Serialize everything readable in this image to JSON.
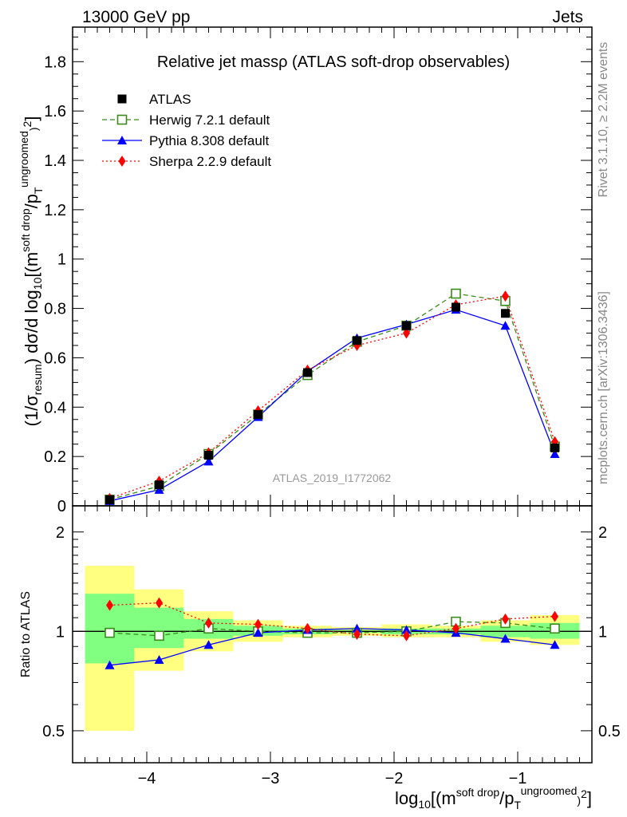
{
  "header": {
    "energy": "13000 GeV pp",
    "process": "Jets",
    "side_top": "Rivet 3.1.10, ≥ 2.2M events",
    "side_bottom": "mcplots.cern.ch [arXiv:1306.3436]",
    "analysis_id": "ATLAS_2019_I1772062"
  },
  "chart_data": [
    {
      "type": "line",
      "panel": "main",
      "title": "Relative jet massρ (ATLAS soft-drop observables)",
      "ylabel": "(1/σresum) dσ/d log10[(msoft drop/pTungroomed)2]",
      "xlim": [
        -4.6,
        -0.4
      ],
      "ylim": [
        0,
        1.94
      ],
      "yticks": [
        0,
        0.2,
        0.4,
        0.6,
        0.8,
        1,
        1.2,
        1.4,
        1.6,
        1.8
      ],
      "ytick_labels": [
        "0",
        "0.2",
        "0.4",
        "0.6",
        "0.8",
        "1",
        "1.2",
        "1.4",
        "1.6",
        "1.8"
      ],
      "x": [
        -4.3,
        -3.9,
        -3.5,
        -3.1,
        -2.7,
        -2.3,
        -1.9,
        -1.5,
        -1.1,
        -0.7
      ],
      "legend_position": "top-left",
      "series": [
        {
          "name": "ATLAS",
          "color": "#000000",
          "marker": "square",
          "values": [
            0.025,
            0.085,
            0.205,
            0.37,
            0.54,
            0.67,
            0.73,
            0.805,
            0.78,
            0.235
          ]
        },
        {
          "name": "Herwig 7.2.1 default",
          "color": "#3a8a1a",
          "marker": "open-square",
          "dash": "dashed",
          "values": [
            0.025,
            0.08,
            0.21,
            0.37,
            0.53,
            0.665,
            0.73,
            0.86,
            0.83,
            0.24
          ]
        },
        {
          "name": "Pythia 8.308 default",
          "color": "#0000ff",
          "marker": "triangle",
          "dash": "solid",
          "values": [
            0.02,
            0.065,
            0.18,
            0.36,
            0.545,
            0.68,
            0.735,
            0.795,
            0.73,
            0.21
          ]
        },
        {
          "name": "Sherpa 2.2.9 default",
          "color": "#ff0000",
          "marker": "diamond",
          "dash": "dotted",
          "values": [
            0.03,
            0.1,
            0.215,
            0.385,
            0.55,
            0.65,
            0.7,
            0.815,
            0.85,
            0.26
          ]
        }
      ]
    },
    {
      "type": "line",
      "panel": "ratio",
      "ylabel": "Ratio to ATLAS",
      "xlabel": "log10[(msoft drop/pTungroomed)2]",
      "xlim": [
        -4.6,
        -0.4
      ],
      "ylim": [
        0.4,
        2.4
      ],
      "log_y": true,
      "yticks": [
        0.5,
        1,
        2
      ],
      "ytick_labels": [
        "0.5",
        "1",
        "2"
      ],
      "xticks": [
        -4,
        -3,
        -2,
        -1
      ],
      "xtick_labels": [
        "−4",
        "−3",
        "−2",
        "−1"
      ],
      "bin_edges": [
        -4.5,
        -4.1,
        -3.7,
        -3.3,
        -2.9,
        -2.5,
        -2.1,
        -1.7,
        -1.3,
        -0.9,
        -0.5
      ],
      "band_total": [
        [
          0.5,
          1.58
        ],
        [
          0.76,
          1.34
        ],
        [
          0.87,
          1.15
        ],
        [
          0.93,
          1.08
        ],
        [
          0.96,
          1.04
        ],
        [
          0.97,
          1.03
        ],
        [
          0.96,
          1.05
        ],
        [
          0.96,
          1.04
        ],
        [
          0.93,
          1.08
        ],
        [
          0.91,
          1.12
        ]
      ],
      "band_stat": [
        [
          0.8,
          1.3
        ],
        [
          0.89,
          1.18
        ],
        [
          0.95,
          1.09
        ],
        [
          0.97,
          1.04
        ],
        [
          0.98,
          1.02
        ],
        [
          0.99,
          1.01
        ],
        [
          0.98,
          1.02
        ],
        [
          0.98,
          1.02
        ],
        [
          0.96,
          1.04
        ],
        [
          0.95,
          1.06
        ]
      ],
      "x": [
        -4.3,
        -3.9,
        -3.5,
        -3.1,
        -2.7,
        -2.3,
        -1.9,
        -1.5,
        -1.1,
        -0.7
      ],
      "series": [
        {
          "name": "Herwig 7.2.1 default",
          "color": "#3a8a1a",
          "marker": "open-square",
          "dash": "dashed",
          "values": [
            0.99,
            0.97,
            1.02,
            1.0,
            0.99,
            0.99,
            1.0,
            1.07,
            1.06,
            1.02
          ]
        },
        {
          "name": "Pythia 8.308 default",
          "color": "#0000ff",
          "marker": "triangle",
          "dash": "solid",
          "values": [
            0.79,
            0.82,
            0.91,
            0.99,
            1.01,
            1.02,
            1.01,
            0.99,
            0.95,
            0.91
          ]
        },
        {
          "name": "Sherpa 2.2.9 default",
          "color": "#ff0000",
          "marker": "diamond",
          "dash": "dotted",
          "values": [
            1.2,
            1.22,
            1.06,
            1.05,
            1.02,
            0.98,
            0.97,
            1.02,
            1.09,
            1.11
          ]
        }
      ]
    }
  ]
}
